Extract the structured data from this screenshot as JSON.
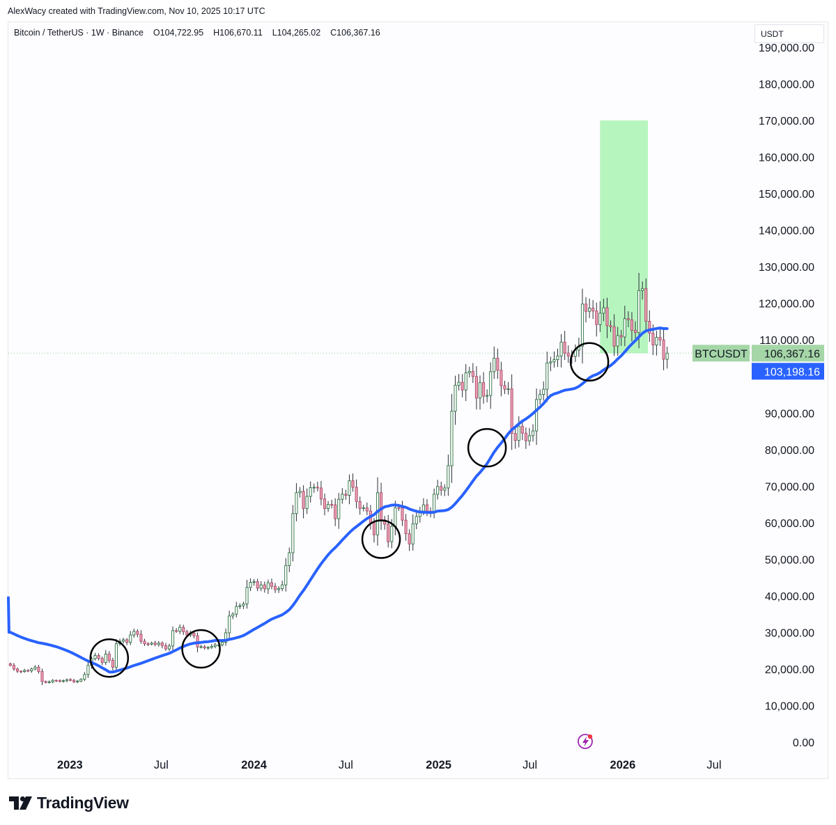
{
  "caption": "AlexWacy created with TradingView.com, Nov 10, 2025 10:17 UTC",
  "symbol": {
    "name": "Bitcoin / TetherUS · 1W · Binance",
    "open": "O104,722.95",
    "high": "H106,670.11",
    "low": "L104,265.02",
    "close": "C106,367.16"
  },
  "currency": "USDT",
  "colors": {
    "bull": "#26a69a",
    "bull_body": "#ffffff",
    "bear": "#ef5350",
    "bear_body": "#e8a0b4",
    "wick": "#2a2e39",
    "ma_line": "#2962ff",
    "target_box": "#b7f5bf",
    "ticker_tag": "#a5d6a7",
    "ma_tag": "#2962ff",
    "circle": "#000000"
  },
  "price_tags": {
    "ticker_label": "BTCUSDT",
    "last_price": "106,367.16",
    "ma_value": "103,198.16"
  },
  "branding": {
    "logo_text": "TradingView",
    "logo_icon": "tradingview-logo-icon"
  },
  "chart_data": {
    "type": "candlestick",
    "title": "",
    "interval": "1W",
    "y_range": [
      0,
      190000
    ],
    "y_ticks": [
      {
        "value": 190000,
        "label": "190,000.00"
      },
      {
        "value": 180000,
        "label": "180,000.00"
      },
      {
        "value": 170000,
        "label": "170,000.00"
      },
      {
        "value": 160000,
        "label": "160,000.00"
      },
      {
        "value": 150000,
        "label": "150,000.00"
      },
      {
        "value": 140000,
        "label": "140,000.00"
      },
      {
        "value": 130000,
        "label": "130,000.00"
      },
      {
        "value": 120000,
        "label": "120,000.00"
      },
      {
        "value": 110000,
        "label": "110,000.00"
      },
      {
        "value": 90000,
        "label": "90,000.00"
      },
      {
        "value": 80000,
        "label": "80,000.00"
      },
      {
        "value": 70000,
        "label": "70,000.00"
      },
      {
        "value": 60000,
        "label": "60,000.00"
      },
      {
        "value": 50000,
        "label": "50,000.00"
      },
      {
        "value": 40000,
        "label": "40,000.00"
      },
      {
        "value": 30000,
        "label": "30,000.00"
      },
      {
        "value": 20000,
        "label": "20,000.00"
      },
      {
        "value": 10000,
        "label": "10,000.00"
      },
      {
        "value": 0,
        "label": "0.00"
      }
    ],
    "x_ticks": [
      {
        "date": "2023-01-01",
        "label": "2023",
        "year": true
      },
      {
        "date": "2023-07-01",
        "label": "Jul",
        "year": false
      },
      {
        "date": "2024-01-01",
        "label": "2024",
        "year": true
      },
      {
        "date": "2024-07-01",
        "label": "Jul",
        "year": false
      },
      {
        "date": "2025-01-01",
        "label": "2025",
        "year": true
      },
      {
        "date": "2025-07-01",
        "label": "Jul",
        "year": false
      },
      {
        "date": "2026-01-01",
        "label": "2026",
        "year": true
      },
      {
        "date": "2026-07-01",
        "label": "Jul",
        "year": false
      }
    ],
    "x_range": [
      "2022-09-01",
      "2026-09-15"
    ],
    "candles_start": "2022-09-05",
    "closes": [
      21000,
      20000,
      19400,
      19300,
      19600,
      19500,
      20000,
      20500,
      19300,
      16600,
      16300,
      16500,
      16900,
      16800,
      16600,
      16800,
      17100,
      16900,
      16500,
      16700,
      17200,
      18500,
      21000,
      22800,
      23700,
      22900,
      21800,
      24100,
      22400,
      20500,
      26900,
      27600,
      28000,
      27300,
      29300,
      30300,
      29500,
      27600,
      26900,
      26800,
      27100,
      26700,
      27100,
      26400,
      25500,
      26300,
      30500,
      30300,
      31400,
      30200,
      29300,
      29800,
      29100,
      26000,
      26100,
      25800,
      25900,
      26200,
      26600,
      26600,
      27300,
      29900,
      34500,
      35000,
      37100,
      37300,
      37800,
      42300,
      43700,
      43900,
      42100,
      43000,
      41900,
      43600,
      42600,
      41700,
      42000,
      43000,
      48300,
      51800,
      62500,
      68200,
      68600,
      63900,
      67200,
      69600,
      69700,
      69500,
      66500,
      63900,
      65000,
      64900,
      61100,
      66400,
      67800,
      67500,
      71500,
      69700,
      65800,
      63900,
      64100,
      63200,
      60000,
      56700,
      68200,
      60800,
      59600,
      54800,
      59000,
      64100,
      64000,
      60700,
      57000,
      54200,
      59700,
      61700,
      63200,
      64900,
      63200,
      62800,
      67800,
      69900,
      68900,
      69500,
      75600,
      90500,
      97600,
      98400,
      96300,
      101000,
      101400,
      100000,
      94100,
      98300,
      94600,
      94800,
      101300,
      105000,
      101700,
      97500,
      96500,
      96600,
      84400,
      82500,
      86400,
      84500,
      82400,
      83800,
      85100,
      93700,
      95100,
      96500,
      103700,
      104000,
      104600,
      105600,
      109400,
      106400,
      105600,
      105500,
      107200,
      108300,
      119800,
      117800,
      118700,
      117900,
      114200,
      117300,
      118800,
      113900,
      113600,
      108300,
      111200,
      110800,
      115800,
      115500,
      112600,
      112000,
      123500,
      124000,
      115100,
      111800,
      108600,
      110700,
      110000,
      104700,
      106367
    ]
  }
}
